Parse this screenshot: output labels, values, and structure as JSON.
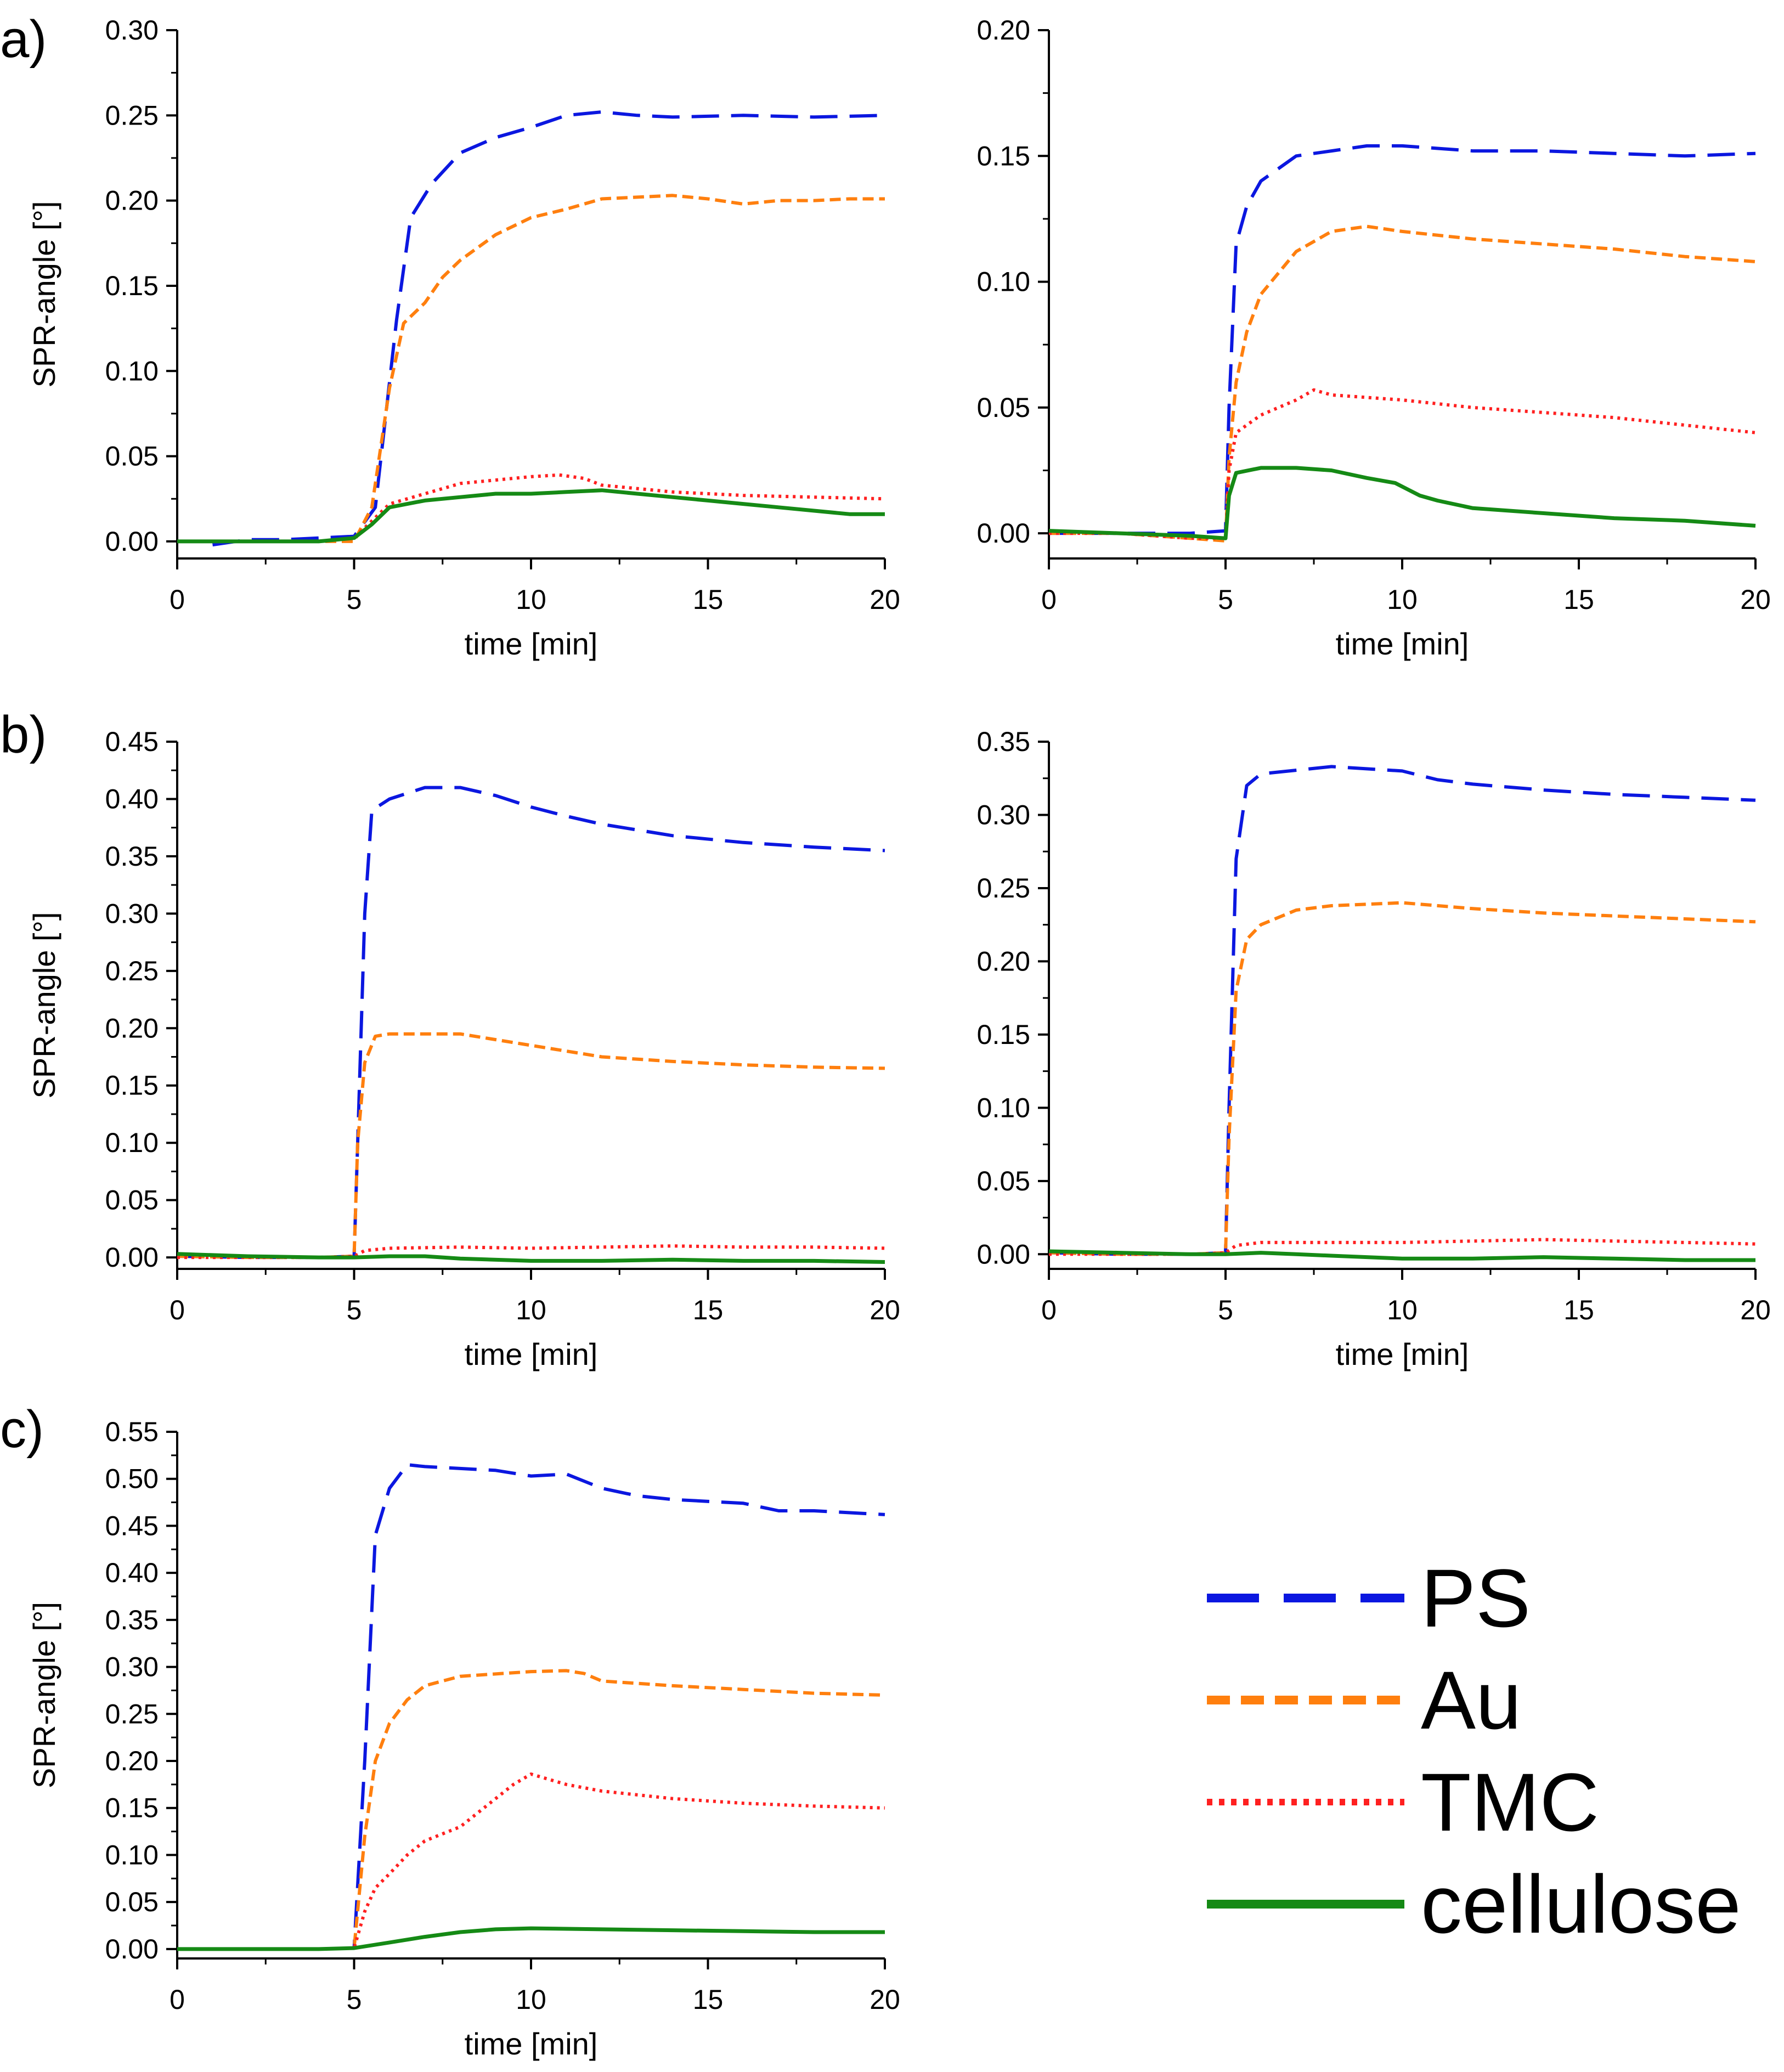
{
  "panel_labels": {
    "a": "a)",
    "b": "b)",
    "c": "c)"
  },
  "legend": [
    {
      "name": "PS",
      "color": "#0b17e0",
      "style": "dash-long"
    },
    {
      "name": "Au",
      "color": "#ff7f0e",
      "style": "dash-short"
    },
    {
      "name": "TMC",
      "color": "#ff2020",
      "style": "dot"
    },
    {
      "name": "cellulose",
      "color": "#158a15",
      "style": "solid"
    }
  ],
  "chart_data": [
    {
      "id": "a-left",
      "type": "line",
      "panel": "a)",
      "xlabel": "time [min]",
      "ylabel": "SPR-angle [°]",
      "xlim": [
        0,
        20
      ],
      "xticks": [
        "0",
        "5",
        "10",
        "15",
        "20"
      ],
      "ylim": [
        -0.01,
        0.3
      ],
      "yticks": [
        "0.00",
        "0.05",
        "0.10",
        "0.15",
        "0.20",
        "0.25",
        "0.30"
      ],
      "series": [
        {
          "name": "PS",
          "x": [
            1,
            2,
            3,
            4,
            5,
            5.6,
            6.2,
            6.6,
            7.2,
            8,
            9,
            10,
            11,
            12,
            13,
            14,
            16,
            18,
            20
          ],
          "y": [
            -0.002,
            0.001,
            0.001,
            0.002,
            0.003,
            0.02,
            0.13,
            0.19,
            0.21,
            0.228,
            0.237,
            0.243,
            0.25,
            0.252,
            0.25,
            0.249,
            0.25,
            0.249,
            0.25
          ]
        },
        {
          "name": "Au",
          "x": [
            0,
            2,
            4,
            5,
            5.5,
            6,
            6.4,
            7,
            7.5,
            8,
            9,
            10,
            11,
            12,
            13,
            14,
            15,
            16,
            17,
            18,
            19,
            20
          ],
          "y": [
            0,
            0,
            0,
            0,
            0.02,
            0.09,
            0.128,
            0.14,
            0.155,
            0.165,
            0.18,
            0.19,
            0.195,
            0.201,
            0.202,
            0.203,
            0.201,
            0.198,
            0.2,
            0.2,
            0.201,
            0.201
          ]
        },
        {
          "name": "TMC",
          "x": [
            0,
            2,
            4,
            5,
            5.5,
            6,
            7,
            8,
            9,
            10,
            10.8,
            11.5,
            12,
            14,
            16,
            18,
            20
          ],
          "y": [
            0,
            0,
            0,
            0.002,
            0.012,
            0.022,
            0.028,
            0.034,
            0.036,
            0.038,
            0.039,
            0.037,
            0.033,
            0.029,
            0.027,
            0.026,
            0.025
          ]
        },
        {
          "name": "cellulose",
          "x": [
            0,
            2,
            4,
            5,
            5.5,
            6,
            7,
            8,
            9,
            10,
            11,
            12,
            13,
            14,
            15,
            16,
            17,
            18,
            19,
            20
          ],
          "y": [
            0,
            0,
            0,
            0.002,
            0.01,
            0.02,
            0.024,
            0.026,
            0.028,
            0.028,
            0.029,
            0.03,
            0.028,
            0.026,
            0.024,
            0.022,
            0.02,
            0.018,
            0.016,
            0.016
          ]
        }
      ]
    },
    {
      "id": "a-right",
      "type": "line",
      "panel": "a)",
      "xlabel": "time [min]",
      "ylabel": "",
      "xlim": [
        0,
        20
      ],
      "xticks": [
        "0",
        "5",
        "10",
        "15",
        "20"
      ],
      "ylim": [
        -0.01,
        0.2
      ],
      "yticks": [
        "0.00",
        "0.05",
        "0.10",
        "0.15",
        "0.20"
      ],
      "series": [
        {
          "name": "PS",
          "x": [
            0,
            2,
            4,
            5,
            5.1,
            5.3,
            5.6,
            6,
            7,
            8,
            9,
            10,
            11,
            12,
            14,
            16,
            18,
            20
          ],
          "y": [
            0,
            0,
            0,
            0.001,
            0.05,
            0.115,
            0.13,
            0.14,
            0.15,
            0.152,
            0.154,
            0.154,
            0.153,
            0.152,
            0.152,
            0.151,
            0.15,
            0.151
          ]
        },
        {
          "name": "Au",
          "x": [
            0,
            2,
            4,
            5,
            5.1,
            5.3,
            5.6,
            6,
            7,
            8,
            9,
            10,
            12,
            14,
            16,
            18,
            20
          ],
          "y": [
            0,
            0,
            -0.002,
            -0.003,
            0.03,
            0.06,
            0.08,
            0.095,
            0.112,
            0.12,
            0.122,
            0.12,
            0.117,
            0.115,
            0.113,
            0.11,
            0.108
          ]
        },
        {
          "name": "TMC",
          "x": [
            0,
            2,
            4,
            5,
            5.1,
            5.3,
            6,
            7,
            7.5,
            8,
            9,
            10,
            12,
            14,
            16,
            18,
            20
          ],
          "y": [
            0,
            0,
            -0.002,
            -0.002,
            0.025,
            0.04,
            0.047,
            0.053,
            0.057,
            0.055,
            0.054,
            0.053,
            0.05,
            0.048,
            0.046,
            0.043,
            0.04
          ]
        },
        {
          "name": "cellulose",
          "x": [
            0,
            2,
            4,
            5,
            5.1,
            5.3,
            6,
            7,
            8,
            9,
            9.8,
            10.5,
            11,
            12,
            14,
            16,
            18,
            20
          ],
          "y": [
            0.001,
            0,
            -0.001,
            -0.002,
            0.015,
            0.024,
            0.026,
            0.026,
            0.025,
            0.022,
            0.02,
            0.015,
            0.013,
            0.01,
            0.008,
            0.006,
            0.005,
            0.003
          ]
        }
      ]
    },
    {
      "id": "b-left",
      "type": "line",
      "panel": "b)",
      "xlabel": "time [min]",
      "ylabel": "SPR-angle [°]",
      "xlim": [
        0,
        20
      ],
      "xticks": [
        "0",
        "5",
        "10",
        "15",
        "20"
      ],
      "ylim": [
        -0.01,
        0.45
      ],
      "yticks": [
        "0.00",
        "0.05",
        "0.10",
        "0.15",
        "0.20",
        "0.25",
        "0.30",
        "0.35",
        "0.40",
        "0.45"
      ],
      "series": [
        {
          "name": "PS",
          "x": [
            0,
            2,
            4,
            5,
            5.1,
            5.3,
            5.5,
            6,
            7,
            8,
            9,
            10,
            11,
            12,
            14,
            16,
            18,
            20
          ],
          "y": [
            0.001,
            0,
            0,
            0.001,
            0.1,
            0.3,
            0.39,
            0.4,
            0.41,
            0.41,
            0.403,
            0.393,
            0.385,
            0.378,
            0.368,
            0.362,
            0.358,
            0.355
          ]
        },
        {
          "name": "Au",
          "x": [
            0,
            2,
            4,
            5,
            5.1,
            5.3,
            5.6,
            6,
            8,
            10,
            12,
            14,
            16,
            18,
            20
          ],
          "y": [
            0.001,
            0,
            0,
            0.001,
            0.1,
            0.17,
            0.193,
            0.195,
            0.195,
            0.185,
            0.175,
            0.171,
            0.168,
            0.166,
            0.165
          ]
        },
        {
          "name": "TMC",
          "x": [
            0,
            2,
            4,
            5,
            5.3,
            6,
            8,
            10,
            12,
            14,
            16,
            18,
            20
          ],
          "y": [
            0,
            0,
            0,
            0.001,
            0.006,
            0.008,
            0.009,
            0.008,
            0.009,
            0.01,
            0.009,
            0.009,
            0.008
          ]
        },
        {
          "name": "cellulose",
          "x": [
            0,
            2,
            4,
            5,
            6,
            7,
            8,
            10,
            12,
            14,
            16,
            18,
            20
          ],
          "y": [
            0.003,
            0.001,
            0,
            0,
            0.001,
            0.001,
            -0.001,
            -0.003,
            -0.003,
            -0.002,
            -0.003,
            -0.003,
            -0.004
          ]
        }
      ]
    },
    {
      "id": "b-right",
      "type": "line",
      "panel": "b)",
      "xlabel": "time [min]",
      "ylabel": "",
      "xlim": [
        0,
        20
      ],
      "xticks": [
        "0",
        "5",
        "10",
        "15",
        "20"
      ],
      "ylim": [
        -0.01,
        0.35
      ],
      "yticks": [
        "0.00",
        "0.05",
        "0.10",
        "0.15",
        "0.20",
        "0.25",
        "0.30",
        "0.35"
      ],
      "series": [
        {
          "name": "PS",
          "x": [
            0,
            2,
            4,
            5,
            5.1,
            5.3,
            5.6,
            6,
            8,
            10,
            11,
            12,
            14,
            16,
            18,
            20
          ],
          "y": [
            0.001,
            0,
            0,
            0.001,
            0.1,
            0.27,
            0.32,
            0.328,
            0.333,
            0.33,
            0.324,
            0.321,
            0.317,
            0.314,
            0.312,
            0.31
          ]
        },
        {
          "name": "Au",
          "x": [
            0,
            2,
            4,
            5,
            5.1,
            5.3,
            5.6,
            6,
            7,
            8,
            10,
            12,
            14,
            16,
            18,
            20
          ],
          "y": [
            0.001,
            0,
            0,
            0.001,
            0.08,
            0.18,
            0.215,
            0.225,
            0.235,
            0.238,
            0.24,
            0.236,
            0.233,
            0.231,
            0.229,
            0.227
          ]
        },
        {
          "name": "TMC",
          "x": [
            0,
            2,
            4,
            5,
            5.3,
            6,
            8,
            10,
            12,
            14,
            16,
            18,
            20
          ],
          "y": [
            0,
            0,
            0,
            0.001,
            0.006,
            0.008,
            0.008,
            0.008,
            0.009,
            0.01,
            0.009,
            0.008,
            0.007
          ]
        },
        {
          "name": "cellulose",
          "x": [
            0,
            2,
            4,
            5,
            6,
            7,
            8,
            10,
            12,
            14,
            16,
            18,
            20
          ],
          "y": [
            0.002,
            0.001,
            0,
            0,
            0.001,
            0,
            -0.001,
            -0.003,
            -0.003,
            -0.002,
            -0.003,
            -0.004,
            -0.004
          ]
        }
      ]
    },
    {
      "id": "c-left",
      "type": "line",
      "panel": "c)",
      "xlabel": "time [min]",
      "ylabel": "SPR-angle [°]",
      "xlim": [
        0,
        20
      ],
      "xticks": [
        "0",
        "5",
        "10",
        "15",
        "20"
      ],
      "ylim": [
        -0.01,
        0.55
      ],
      "yticks": [
        "0.00",
        "0.05",
        "0.10",
        "0.15",
        "0.20",
        "0.25",
        "0.30",
        "0.35",
        "0.40",
        "0.45",
        "0.50",
        "0.55"
      ],
      "series": [
        {
          "name": "PS",
          "x": [
            0,
            2,
            4,
            5,
            5.3,
            5.6,
            6,
            6.5,
            7,
            8,
            9,
            10,
            11,
            12,
            13,
            14,
            16,
            17,
            18,
            20
          ],
          "y": [
            0,
            0,
            0,
            0.001,
            0.2,
            0.44,
            0.49,
            0.515,
            0.513,
            0.511,
            0.509,
            0.503,
            0.505,
            0.49,
            0.482,
            0.478,
            0.474,
            0.466,
            0.466,
            0.462
          ]
        },
        {
          "name": "Au",
          "x": [
            0,
            2,
            4,
            5,
            5.3,
            5.6,
            6,
            6.5,
            7,
            8,
            10,
            11,
            11.5,
            12,
            14,
            16,
            18,
            20
          ],
          "y": [
            0,
            0,
            0,
            0.001,
            0.12,
            0.2,
            0.24,
            0.265,
            0.28,
            0.29,
            0.295,
            0.296,
            0.293,
            0.285,
            0.28,
            0.276,
            0.272,
            0.27
          ]
        },
        {
          "name": "TMC",
          "x": [
            0,
            2,
            4,
            5,
            5.3,
            5.6,
            6,
            6.5,
            7,
            8,
            9,
            9.5,
            10,
            11,
            12,
            14,
            16,
            18,
            20
          ],
          "y": [
            0,
            0,
            0,
            0.001,
            0.04,
            0.065,
            0.08,
            0.1,
            0.115,
            0.13,
            0.16,
            0.175,
            0.186,
            0.175,
            0.168,
            0.16,
            0.155,
            0.152,
            0.15
          ]
        },
        {
          "name": "cellulose",
          "x": [
            0,
            2,
            4,
            5,
            6,
            7,
            8,
            9,
            10,
            12,
            14,
            16,
            18,
            20
          ],
          "y": [
            0,
            0,
            0,
            0.001,
            0.007,
            0.013,
            0.018,
            0.021,
            0.022,
            0.021,
            0.02,
            0.019,
            0.018,
            0.018
          ]
        }
      ]
    }
  ]
}
